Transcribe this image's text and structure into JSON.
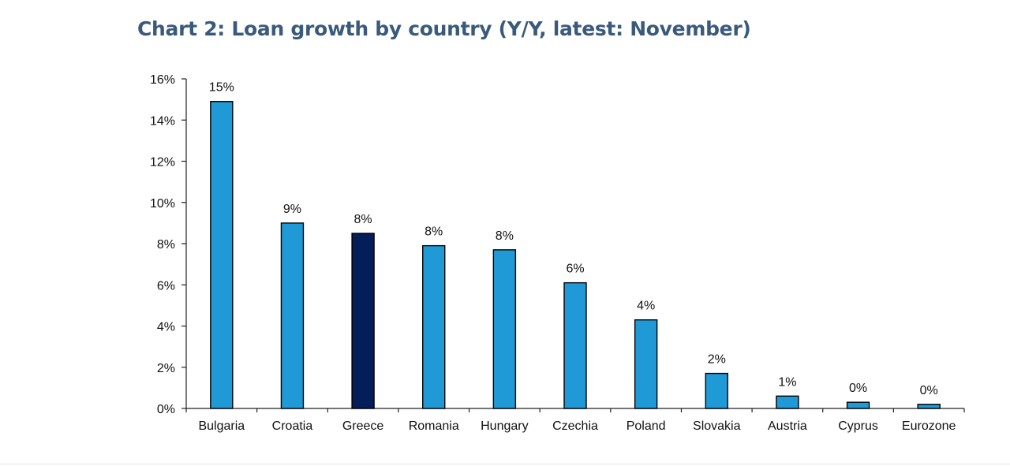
{
  "chart_data": {
    "type": "bar",
    "title": "Chart 2: Loan growth by country (Y/Y, latest: November)",
    "xlabel": "",
    "ylabel": "",
    "ylim": [
      0,
      16
    ],
    "yticks": [
      0,
      2,
      4,
      6,
      8,
      10,
      12,
      14,
      16
    ],
    "ytick_labels": [
      "0%",
      "2%",
      "4%",
      "6%",
      "8%",
      "10%",
      "12%",
      "14%",
      "16%"
    ],
    "grid": false,
    "categories": [
      "Bulgaria",
      "Croatia",
      "Greece",
      "Romania",
      "Hungary",
      "Czechia",
      "Poland",
      "Slovakia",
      "Austria",
      "Cyprus",
      "Eurozone"
    ],
    "values": [
      14.9,
      9.0,
      8.5,
      7.9,
      7.7,
      6.1,
      4.3,
      1.7,
      0.6,
      0.3,
      0.2
    ],
    "data_labels": [
      "15%",
      "9%",
      "8%",
      "8%",
      "8%",
      "6%",
      "4%",
      "2%",
      "1%",
      "0%",
      "0%"
    ],
    "colors": [
      "#1f9ad6",
      "#1f9ad6",
      "#041e5a",
      "#1f9ad6",
      "#1f9ad6",
      "#1f9ad6",
      "#1f9ad6",
      "#1f9ad6",
      "#1f9ad6",
      "#1f9ad6",
      "#1f9ad6"
    ],
    "highlight": "Greece"
  }
}
